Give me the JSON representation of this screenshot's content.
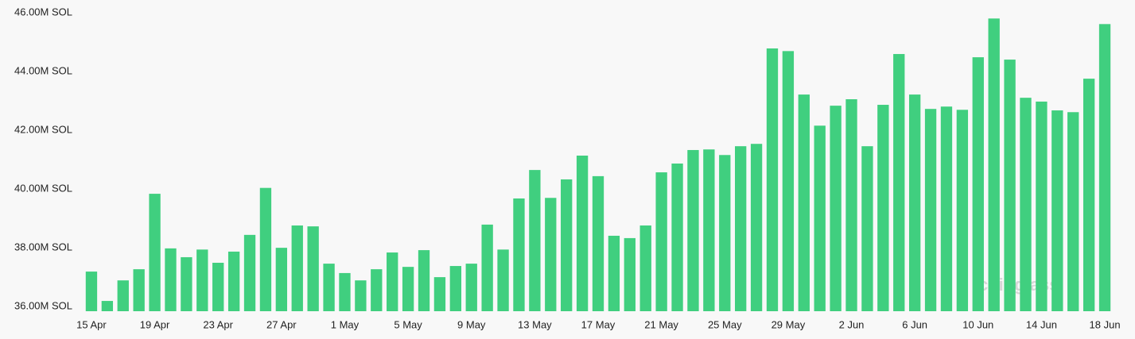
{
  "chart_data": {
    "type": "bar",
    "categories": [
      "15 Apr",
      null,
      null,
      null,
      "19 Apr",
      null,
      null,
      null,
      "23 Apr",
      null,
      null,
      null,
      "27 Apr",
      null,
      null,
      null,
      "1 May",
      null,
      null,
      null,
      "5 May",
      null,
      null,
      null,
      "9 May",
      null,
      null,
      null,
      "13 May",
      null,
      null,
      null,
      "17 May",
      null,
      null,
      null,
      "21 May",
      null,
      null,
      null,
      "25 May",
      null,
      null,
      null,
      "29 May",
      null,
      null,
      null,
      "2 Jun",
      null,
      null,
      null,
      "6 Jun",
      null,
      null,
      null,
      "10 Jun",
      null,
      null,
      null,
      "14 Jun",
      null,
      null,
      null,
      "18 Jun"
    ],
    "values": [
      37.35,
      36.35,
      37.05,
      37.43,
      40.0,
      38.14,
      37.84,
      38.1,
      37.65,
      38.03,
      38.6,
      40.2,
      38.16,
      38.92,
      38.89,
      37.62,
      37.3,
      37.05,
      37.43,
      38.0,
      37.51,
      38.08,
      37.16,
      37.54,
      37.62,
      38.95,
      38.1,
      39.84,
      40.81,
      39.86,
      40.49,
      41.3,
      40.6,
      38.57,
      38.49,
      38.92,
      40.73,
      41.03,
      41.49,
      41.51,
      41.32,
      41.62,
      41.7,
      44.95,
      44.86,
      43.38,
      42.32,
      43.0,
      43.22,
      41.62,
      43.03,
      44.76,
      43.38,
      42.89,
      42.97,
      42.86,
      44.65,
      45.97,
      44.57,
      43.27,
      43.14,
      42.84,
      42.78,
      43.92,
      45.78
    ],
    "color": "#40cf7f",
    "ylim": [
      36,
      46.6
    ],
    "yticks": [
      {
        "value": 36,
        "label": "36.00M SOL"
      },
      {
        "value": 38,
        "label": "38.00M SOL"
      },
      {
        "value": 40,
        "label": "40.00M SOL"
      },
      {
        "value": 42,
        "label": "42.00M SOL"
      },
      {
        "value": 44,
        "label": "44.00M SOL"
      },
      {
        "value": 46,
        "label": "46.00M SOL"
      }
    ],
    "grid": false,
    "watermark": "coinglass"
  }
}
